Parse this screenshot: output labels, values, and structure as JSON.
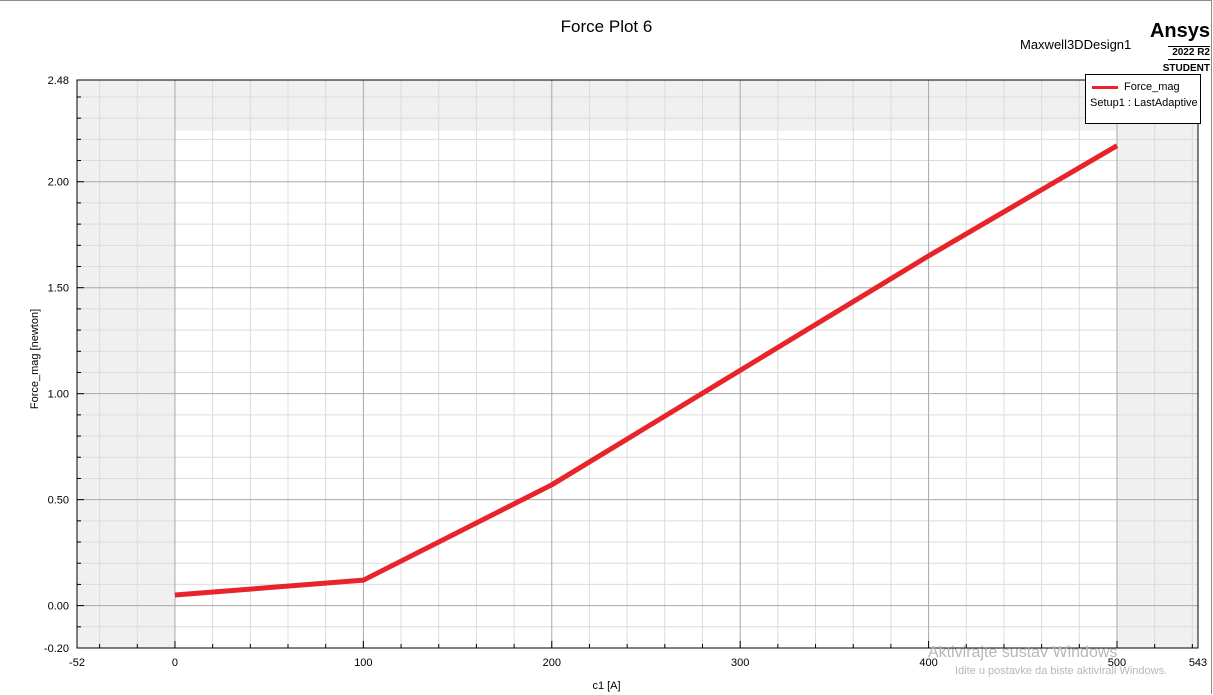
{
  "header": {
    "title": "Force Plot 6",
    "design_name": "Maxwell3DDesign1",
    "brand": "Ansys",
    "version": "2022 R2",
    "edition": "STUDENT"
  },
  "legend": {
    "series_name": "Force_mag",
    "setup": "Setup1 : LastAdaptive"
  },
  "watermark": {
    "line1": "Aktivirajte sustav Windows",
    "line2": "Idite u postavke da biste aktivirali Windows."
  },
  "chart_data": {
    "type": "line",
    "title": "Force Plot 6",
    "xlabel": "c1 [A]",
    "ylabel": "Force_mag [newton]",
    "xlim": [
      -52,
      543
    ],
    "ylim": [
      -0.2,
      2.48
    ],
    "x_ticks": [
      "-52",
      "0",
      "100",
      "200",
      "300",
      "400",
      "500",
      "543"
    ],
    "y_ticks": [
      "-0.20",
      "0.00",
      "0.50",
      "1.00",
      "1.50",
      "2.00",
      "2.48"
    ],
    "grid": true,
    "legend_position": "top-right",
    "series_color": "#e8232a",
    "series": [
      {
        "name": "Force_mag",
        "x": [
          0,
          100,
          200,
          300,
          400,
          500
        ],
        "y": [
          0.05,
          0.12,
          0.57,
          1.11,
          1.65,
          2.17
        ]
      }
    ]
  }
}
